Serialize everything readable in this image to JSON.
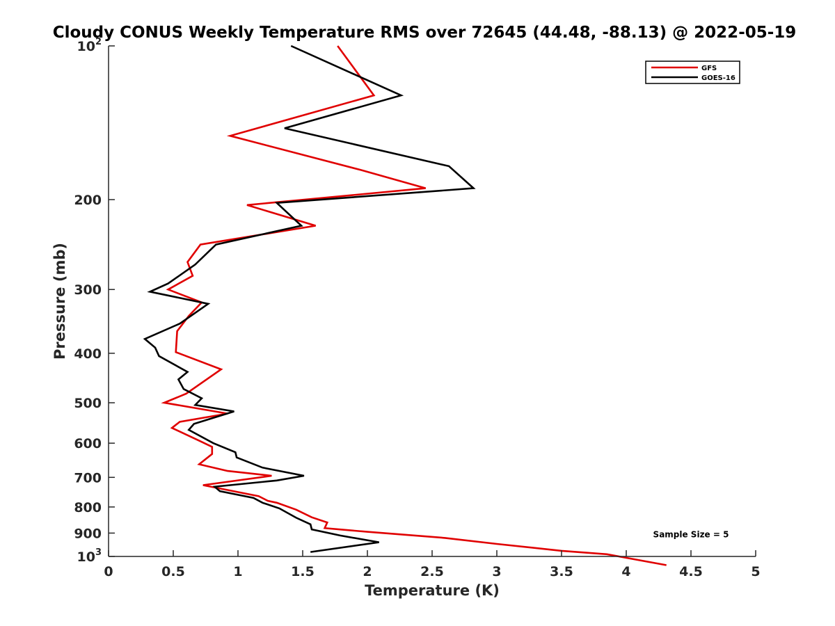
{
  "chart_data": {
    "type": "line",
    "title": "Cloudy CONUS Weekly Temperature RMS over 72645 (44.48, -88.13) @ 2022-05-19",
    "xlabel": "Temperature (K)",
    "ylabel": "Pressure (mb)",
    "xlim": [
      0,
      5
    ],
    "ylim": [
      100,
      1000
    ],
    "y_scale": "log",
    "y_reversed": true,
    "grid": false,
    "legend_position": "top-right",
    "x_ticks": [
      {
        "value": 0,
        "label": "0"
      },
      {
        "value": 0.5,
        "label": "0.5"
      },
      {
        "value": 1,
        "label": "1"
      },
      {
        "value": 1.5,
        "label": "1.5"
      },
      {
        "value": 2,
        "label": "2"
      },
      {
        "value": 2.5,
        "label": "2.5"
      },
      {
        "value": 3,
        "label": "3"
      },
      {
        "value": 3.5,
        "label": "3.5"
      },
      {
        "value": 4,
        "label": "4"
      },
      {
        "value": 4.5,
        "label": "4.5"
      },
      {
        "value": 5,
        "label": "5"
      }
    ],
    "y_ticks": [
      {
        "value": 100,
        "label": "10",
        "sup": "2"
      },
      {
        "value": 200,
        "label": "200",
        "sup": ""
      },
      {
        "value": 300,
        "label": "300",
        "sup": ""
      },
      {
        "value": 400,
        "label": "400",
        "sup": ""
      },
      {
        "value": 500,
        "label": "500",
        "sup": ""
      },
      {
        "value": 600,
        "label": "600",
        "sup": ""
      },
      {
        "value": 700,
        "label": "700",
        "sup": ""
      },
      {
        "value": 800,
        "label": "800",
        "sup": ""
      },
      {
        "value": 900,
        "label": "900",
        "sup": ""
      },
      {
        "value": 1000,
        "label": "10",
        "sup": "3"
      }
    ],
    "series": [
      {
        "name": "GFS",
        "color": "#e00000",
        "points": [
          [
            1.77,
            100
          ],
          [
            2.05,
            125
          ],
          [
            0.94,
            150
          ],
          [
            1.95,
            175
          ],
          [
            2.45,
            190
          ],
          [
            1.07,
            205
          ],
          [
            1.6,
            225
          ],
          [
            0.71,
            245
          ],
          [
            0.61,
            265
          ],
          [
            0.65,
            282
          ],
          [
            0.46,
            300
          ],
          [
            0.72,
            318
          ],
          [
            0.62,
            338
          ],
          [
            0.53,
            362
          ],
          [
            0.52,
            398
          ],
          [
            0.87,
            430
          ],
          [
            0.6,
            480
          ],
          [
            0.43,
            500
          ],
          [
            0.92,
            525
          ],
          [
            0.55,
            545
          ],
          [
            0.49,
            560
          ],
          [
            0.68,
            590
          ],
          [
            0.8,
            610
          ],
          [
            0.8,
            630
          ],
          [
            0.7,
            660
          ],
          [
            0.92,
            680
          ],
          [
            1.26,
            695
          ],
          [
            0.73,
            725
          ],
          [
            1.16,
            762
          ],
          [
            1.23,
            778
          ],
          [
            1.3,
            785
          ],
          [
            1.45,
            810
          ],
          [
            1.57,
            838
          ],
          [
            1.69,
            858
          ],
          [
            1.67,
            880
          ],
          [
            2.0,
            895
          ],
          [
            2.6,
            920
          ],
          [
            3.0,
            945
          ],
          [
            3.5,
            975
          ],
          [
            3.85,
            990
          ],
          [
            4.31,
            1040
          ]
        ]
      },
      {
        "name": "GOES-16",
        "color": "#000000",
        "points": [
          [
            1.41,
            100
          ],
          [
            2.26,
            125
          ],
          [
            1.36,
            145
          ],
          [
            2.63,
            172
          ],
          [
            2.82,
            190
          ],
          [
            1.3,
            203
          ],
          [
            1.49,
            225
          ],
          [
            0.83,
            245
          ],
          [
            0.67,
            268
          ],
          [
            0.46,
            292
          ],
          [
            0.32,
            303
          ],
          [
            0.77,
            320
          ],
          [
            0.55,
            350
          ],
          [
            0.28,
            375
          ],
          [
            0.36,
            390
          ],
          [
            0.39,
            405
          ],
          [
            0.61,
            435
          ],
          [
            0.54,
            450
          ],
          [
            0.58,
            470
          ],
          [
            0.72,
            490
          ],
          [
            0.67,
            505
          ],
          [
            0.97,
            520
          ],
          [
            0.66,
            550
          ],
          [
            0.62,
            565
          ],
          [
            0.81,
            600
          ],
          [
            0.98,
            625
          ],
          [
            0.99,
            640
          ],
          [
            1.19,
            670
          ],
          [
            1.51,
            695
          ],
          [
            1.3,
            710
          ],
          [
            0.82,
            730
          ],
          [
            0.86,
            745
          ],
          [
            1.12,
            768
          ],
          [
            1.19,
            785
          ],
          [
            1.32,
            805
          ],
          [
            1.45,
            840
          ],
          [
            1.56,
            865
          ],
          [
            1.57,
            885
          ],
          [
            1.79,
            910
          ],
          [
            2.09,
            938
          ],
          [
            1.56,
            980
          ]
        ]
      }
    ],
    "annotations": [
      {
        "text": "Sample Size = 5",
        "x": 4.5,
        "y": 900
      }
    ]
  }
}
